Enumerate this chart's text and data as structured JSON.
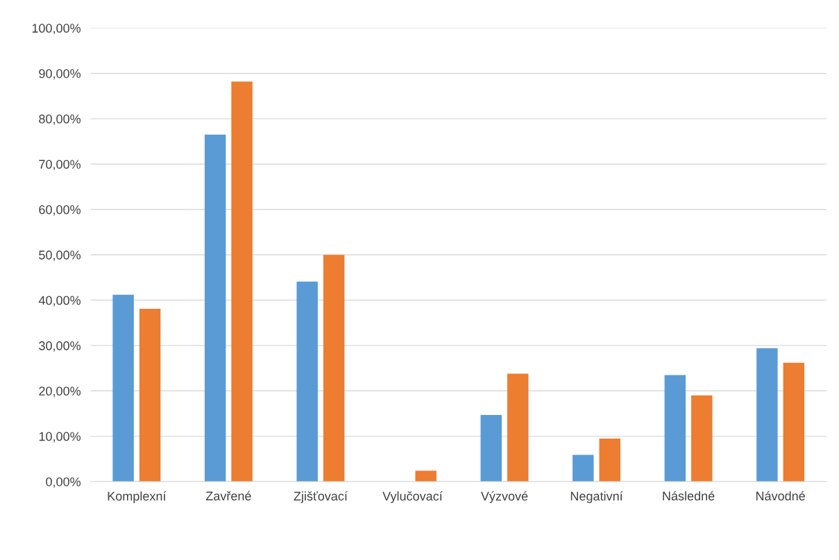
{
  "chart_data": {
    "type": "bar",
    "categories": [
      "Komplexní",
      "Zavřené",
      "Zjišťovací",
      "Vylučovací",
      "Výzvové",
      "Negativní",
      "Následné",
      "Návodné"
    ],
    "series": [
      {
        "color": "#5b9bd5",
        "values": [
          41.2,
          76.5,
          44.1,
          0,
          14.7,
          5.9,
          23.5,
          29.4
        ]
      },
      {
        "color": "#ed7d31",
        "values": [
          38.1,
          88.2,
          50.0,
          2.4,
          23.8,
          9.5,
          19.0,
          26.2
        ]
      }
    ],
    "ylim": [
      0,
      100
    ],
    "yticks": [
      {
        "value": 0,
        "label": "0,00%"
      },
      {
        "value": 10,
        "label": "10,00%"
      },
      {
        "value": 20,
        "label": "20,00%"
      },
      {
        "value": 30,
        "label": "30,00%"
      },
      {
        "value": 40,
        "label": "40,00%"
      },
      {
        "value": 50,
        "label": "50,00%"
      },
      {
        "value": 60,
        "label": "60,00%"
      },
      {
        "value": 70,
        "label": "70,00%"
      },
      {
        "value": 80,
        "label": "80,00%"
      },
      {
        "value": 90,
        "label": "90,00%"
      },
      {
        "value": 100,
        "label": "100,00%"
      }
    ],
    "grid": "y"
  }
}
